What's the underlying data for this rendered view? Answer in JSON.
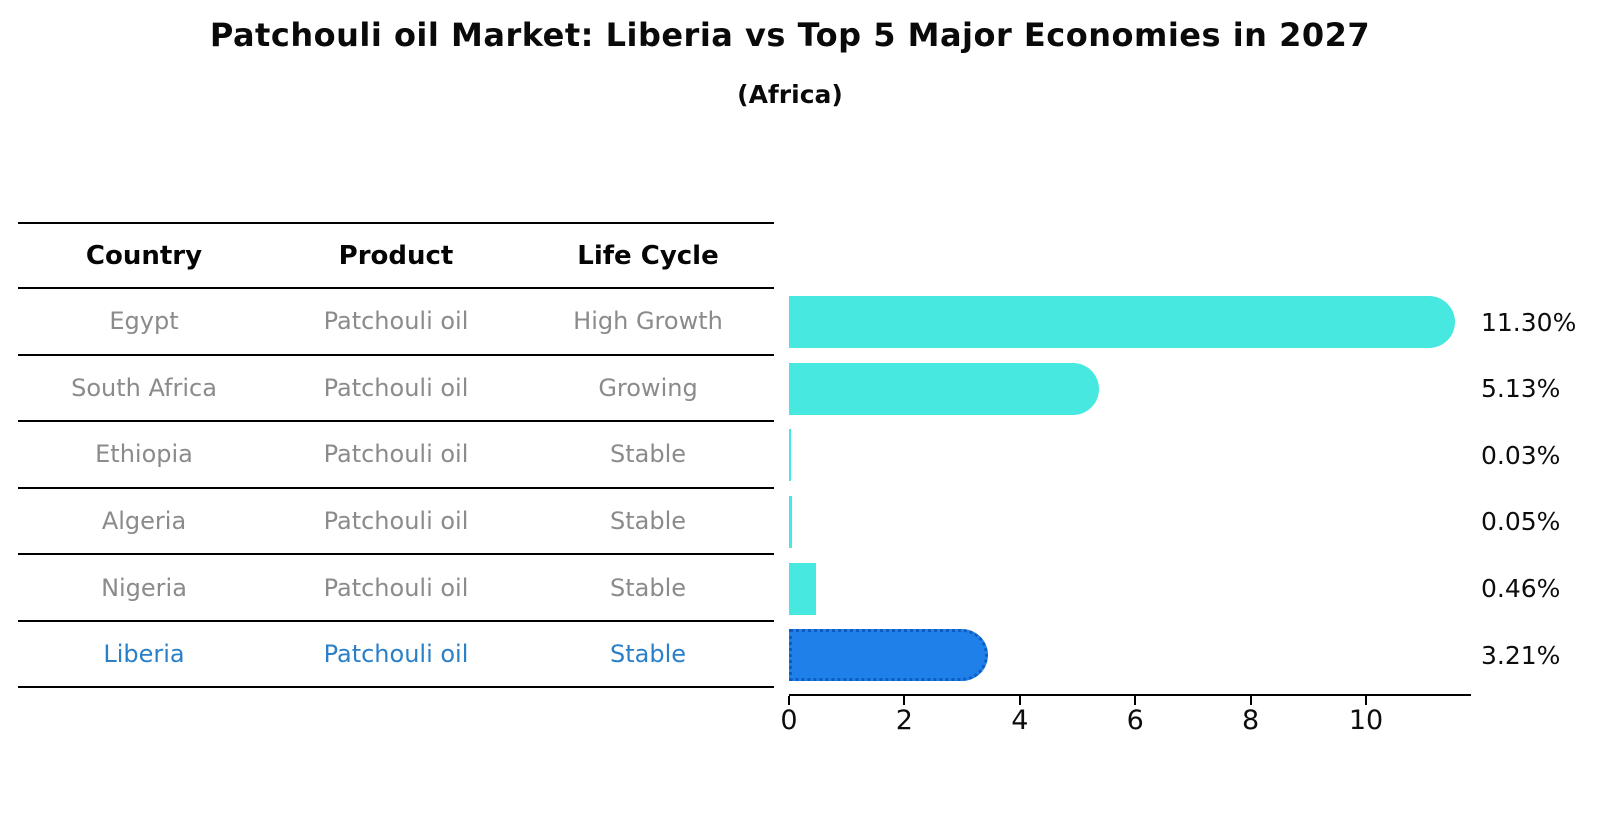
{
  "title": "Patchouli oil Market: Liberia vs Top 5 Major Economies in 2027",
  "subtitle": "(Africa)",
  "table": {
    "headers": [
      "Country",
      "Product",
      "Life Cycle"
    ]
  },
  "chart_data": {
    "type": "bar",
    "orientation": "horizontal",
    "value_unit": "%",
    "x_ticks": [
      0,
      2,
      4,
      6,
      8,
      10
    ],
    "xlim": [
      0,
      11.8
    ],
    "rows": [
      {
        "country": "Egypt",
        "product": "Patchouli oil",
        "life_cycle": "High Growth",
        "value": 11.3,
        "label": "11.30%",
        "highlight": false
      },
      {
        "country": "South Africa",
        "product": "Patchouli oil",
        "life_cycle": "Growing",
        "value": 5.13,
        "label": "5.13%",
        "highlight": false
      },
      {
        "country": "Ethiopia",
        "product": "Patchouli oil",
        "life_cycle": "Stable",
        "value": 0.03,
        "label": "0.03%",
        "highlight": false
      },
      {
        "country": "Algeria",
        "product": "Patchouli oil",
        "life_cycle": "Stable",
        "value": 0.05,
        "label": "0.05%",
        "highlight": false
      },
      {
        "country": "Nigeria",
        "product": "Patchouli oil",
        "life_cycle": "Stable",
        "value": 0.46,
        "label": "0.46%",
        "highlight": false
      },
      {
        "country": "Liberia",
        "product": "Patchouli oil",
        "life_cycle": "Stable",
        "value": 3.21,
        "label": "3.21%",
        "highlight": true
      }
    ]
  },
  "colors": {
    "bar_color": "#47e8df",
    "highlight_bar_color": "#1e80e8",
    "highlight_border_color": "#0d5cc1",
    "highlight_text_color": "#2a80c8",
    "row_text_color": "#8b8b8b",
    "header_text_color": "#050505",
    "line_color": "#000000"
  }
}
